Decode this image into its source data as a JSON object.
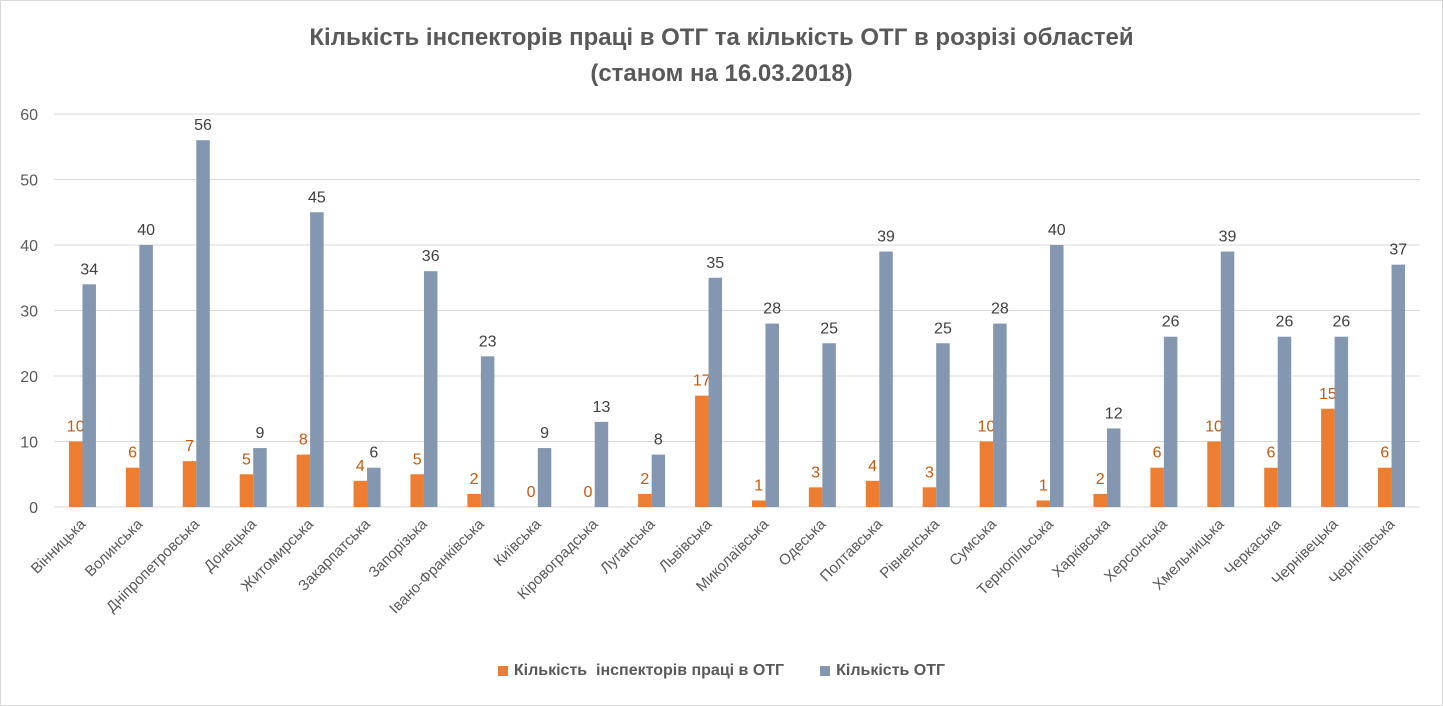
{
  "chart_data": {
    "type": "bar",
    "title": "Кількість інспекторів праці в ОТГ та кількість ОТГ в розрізі областей",
    "subtitle": "(станом на 16.03.2018)",
    "xlabel": "",
    "ylabel": "",
    "ylim": [
      0,
      60
    ],
    "yticks": [
      0,
      10,
      20,
      30,
      40,
      50,
      60
    ],
    "grid": true,
    "legend": "bottom",
    "categories": [
      "Вінницька",
      "Волинська",
      "Дніпропетровська",
      "Донецька",
      "Житомирська",
      "Закарпатська",
      "Запорізька",
      "Івано-Франківська",
      "Київська",
      "Кіровоградська",
      "Луганська",
      "Львівська",
      "Миколаївська",
      "Одеська",
      "Полтавська",
      "Рівненська",
      "Сумська",
      "Тернопільська",
      "Харківська",
      "Херсонська",
      "Хмельницька",
      "Черкаська",
      "Чернівецька",
      "Чернігівська"
    ],
    "series": [
      {
        "name": "Кількість  інспекторів праці в ОТГ",
        "color": "#ED7D31",
        "label_color": "#C55A11",
        "values": [
          10,
          6,
          7,
          5,
          8,
          4,
          5,
          2,
          0,
          0,
          2,
          17,
          1,
          3,
          4,
          3,
          10,
          1,
          2,
          6,
          10,
          6,
          15,
          6
        ]
      },
      {
        "name": "Кількість ОТГ",
        "color": "#8497B0",
        "label_color": "#404040",
        "values": [
          34,
          40,
          56,
          9,
          45,
          6,
          36,
          23,
          9,
          13,
          8,
          35,
          28,
          25,
          39,
          25,
          28,
          40,
          12,
          26,
          39,
          26,
          26,
          37
        ]
      }
    ]
  }
}
